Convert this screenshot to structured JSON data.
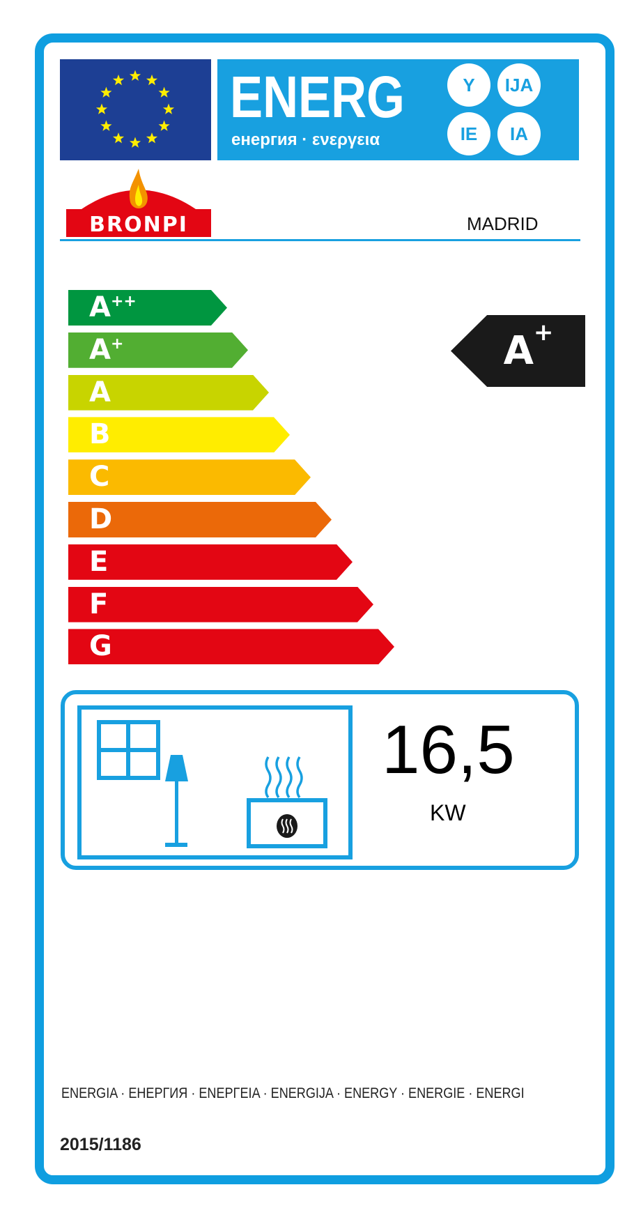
{
  "header": {
    "energy_word": "ENERG",
    "energy_subtitle": "енергия · ενεργεια",
    "suffixes": [
      "Y",
      "IJA",
      "IE",
      "IA"
    ]
  },
  "brand": {
    "logo_text": "BRONPI",
    "model": "MADRID"
  },
  "scale": [
    {
      "letter": "A",
      "sup": "++",
      "color": "#009640"
    },
    {
      "letter": "A",
      "sup": "+",
      "color": "#52ae32"
    },
    {
      "letter": "A",
      "sup": "",
      "color": "#c8d400"
    },
    {
      "letter": "B",
      "sup": "",
      "color": "#ffed00"
    },
    {
      "letter": "C",
      "sup": "",
      "color": "#fbba00"
    },
    {
      "letter": "D",
      "sup": "",
      "color": "#eb6909"
    },
    {
      "letter": "E",
      "sup": "",
      "color": "#e30613"
    },
    {
      "letter": "F",
      "sup": "",
      "color": "#e30613"
    },
    {
      "letter": "G",
      "sup": "",
      "color": "#e30613"
    }
  ],
  "rating": {
    "letter": "A",
    "sup": "+"
  },
  "output": {
    "value": "16,5",
    "unit": "KW"
  },
  "icons": [
    "window-icon",
    "lamp-icon",
    "heater-icon"
  ],
  "footer": {
    "languages": "ENERGIA · ЕНЕРГИЯ · ΕΝΕΡΓΕΙΑ · ENERGIJA · ENERGY · ENERGIE · ENERGI",
    "regulation": "2015/1186"
  },
  "colors": {
    "frame": "#0f9ee0",
    "eu_blue": "#1d3f94",
    "banner": "#18a0e0",
    "indicator": "#1a1a1a"
  }
}
